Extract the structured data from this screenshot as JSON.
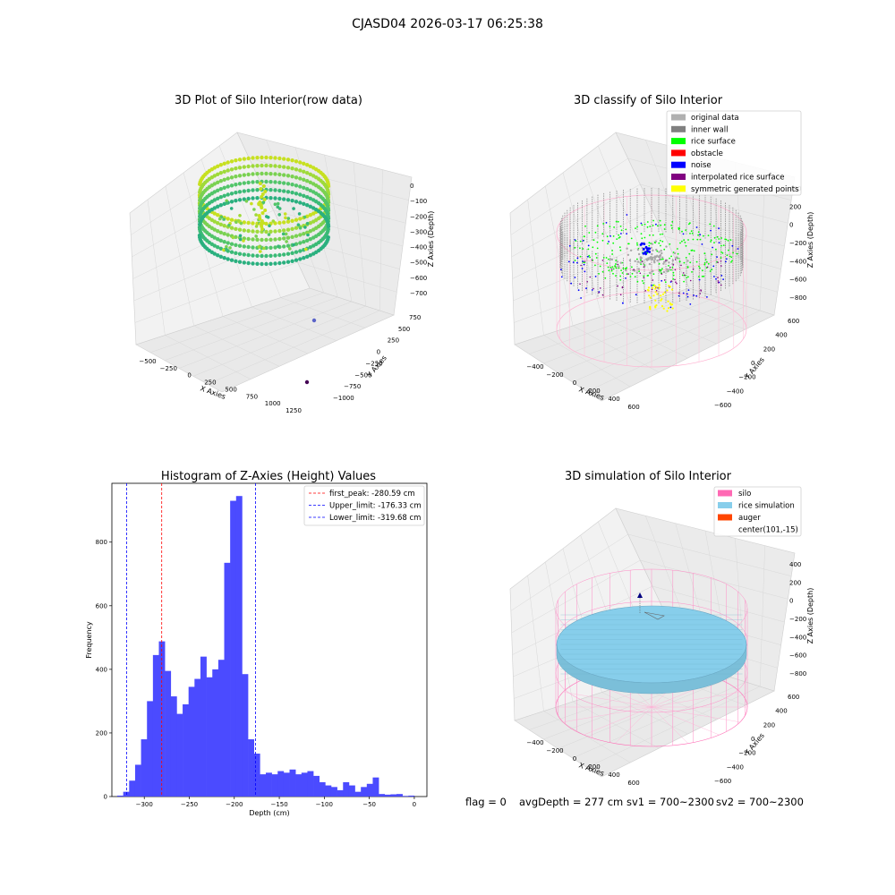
{
  "figure_title": "CJASD04 2026-03-17 06:25:38",
  "footer": {
    "flag": "flag = 0",
    "avg_depth": "avgDepth = 277 cm",
    "sv1": "sv1 = 700~2300",
    "sv2": "sv2 = 700~2300"
  },
  "chart_data": [
    {
      "type": "scatter",
      "title": "3D Plot of Silo Interior(row data)",
      "xlabel": "X Axies",
      "ylabel": "Y Axies",
      "zlabel": "Z Axies (Depth)",
      "x_ticks": [
        "−500",
        "−250",
        "0",
        "250",
        "500",
        "750",
        "1000",
        "1250"
      ],
      "y_ticks": [
        "750",
        "500",
        "250",
        "0",
        "−250",
        "−500",
        "−750",
        "−1000"
      ],
      "z_ticks": [
        "0",
        "−100",
        "−200",
        "−300",
        "−400",
        "−500",
        "−600",
        "−700"
      ],
      "colormap": "viridis"
    },
    {
      "type": "scatter",
      "title": "3D classify of Silo Interior",
      "xlabel": "X Axies",
      "ylabel": "Y Axies",
      "zlabel": "Z Axies (Depth)",
      "x_ticks": [
        "−400",
        "−200",
        "0",
        "200",
        "400",
        "600"
      ],
      "y_ticks": [
        "600",
        "400",
        "200",
        "0",
        "−200",
        "−400",
        "−600"
      ],
      "z_ticks": [
        "400",
        "200",
        "0",
        "−200",
        "−400",
        "−600",
        "−800"
      ],
      "legend": [
        {
          "label": "original data",
          "color": "#b0b0b0"
        },
        {
          "label": "inner wall",
          "color": "#808080"
        },
        {
          "label": "rice surface",
          "color": "#00ff00"
        },
        {
          "label": "obstacle",
          "color": "#ff0000"
        },
        {
          "label": "noise",
          "color": "#0000ff"
        },
        {
          "label": "interpolated rice surface",
          "color": "#800080"
        },
        {
          "label": "symmetric generated points",
          "color": "#ffff00"
        }
      ],
      "legend_position": "top-right"
    },
    {
      "type": "bar",
      "title": "Histogram of Z-Axies (Height) Values",
      "xlabel": "Depth (cm)",
      "ylabel": "Frequency",
      "xlim": [
        -336,
        14
      ],
      "ylim": [
        0,
        985
      ],
      "x_ticks": [
        -300,
        -250,
        -200,
        -150,
        -100,
        -50,
        0
      ],
      "y_ticks": [
        0,
        200,
        400,
        600,
        800
      ],
      "bin_start": -330,
      "bin_width": 6.6,
      "values": [
        3,
        15,
        50,
        100,
        180,
        300,
        445,
        488,
        395,
        315,
        260,
        290,
        345,
        370,
        440,
        375,
        400,
        430,
        735,
        930,
        945,
        385,
        180,
        135,
        70,
        75,
        70,
        80,
        75,
        85,
        70,
        75,
        80,
        65,
        45,
        35,
        30,
        20,
        45,
        35,
        15,
        30,
        40,
        60,
        8,
        6,
        7,
        8,
        2,
        3
      ],
      "color": "#4b4bff",
      "lines": [
        {
          "label": "first_peak: -280.59 cm",
          "x": -280.59,
          "color": "#ff0000"
        },
        {
          "label": "Upper_limit: -176.33 cm",
          "x": -176.33,
          "color": "#0000ff"
        },
        {
          "label": "Lower_limit: -319.68 cm",
          "x": -319.68,
          "color": "#0000ff"
        }
      ],
      "legend_position": "top-right"
    },
    {
      "type": "scatter",
      "title": "3D simulation of Silo Interior",
      "xlabel": "X Axies",
      "ylabel": "Y Axies",
      "zlabel": "Z Axies (Depth)",
      "x_ticks": [
        "−400",
        "−200",
        "0",
        "200",
        "400",
        "600"
      ],
      "y_ticks": [
        "600",
        "400",
        "200",
        "0",
        "−200",
        "−400",
        "−600"
      ],
      "z_ticks": [
        "400",
        "200",
        "0",
        "−200",
        "−400",
        "−600",
        "−800"
      ],
      "legend": [
        {
          "label": "silo",
          "color": "#ff69b4"
        },
        {
          "label": "rice simulation",
          "color": "#87ceeb"
        },
        {
          "label": "auger",
          "color": "#ff4500"
        },
        {
          "label": "center(101,-15)",
          "color": ""
        }
      ],
      "legend_position": "top-right"
    }
  ]
}
